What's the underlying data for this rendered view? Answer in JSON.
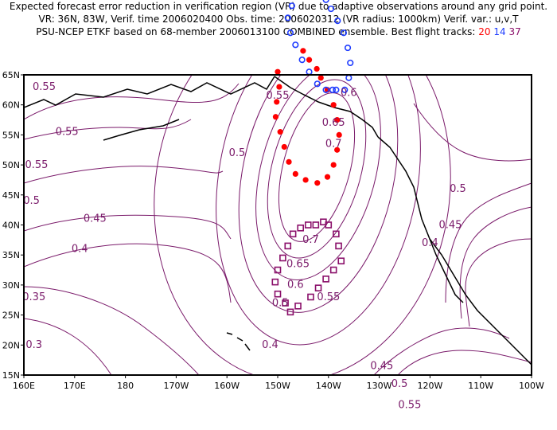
{
  "header": {
    "line1": "Expected forecast error reduction in verification region (VR) due to adaptive observations around any grid point.",
    "line2": "VR: 36N, 83W, Verif. time 2006020400  Obs. time: 2006020312 (VR radius: 1000km)  Verif. var.: u,v,T",
    "line3_prefix": "PSU-NCEP ETKF based on 68-member 2006013100 COMBINED ensemble.  Best flight tracks:",
    "track_20": "20",
    "track_14": "14",
    "track_37": "37"
  },
  "map": {
    "lon_range": [
      160,
      260
    ],
    "lat_range": [
      15,
      65
    ],
    "x_ticks": [
      {
        "lon": 160,
        "label": "160E"
      },
      {
        "lon": 170,
        "label": "170E"
      },
      {
        "lon": 180,
        "label": "180"
      },
      {
        "lon": 190,
        "label": "170W"
      },
      {
        "lon": 200,
        "label": "160W"
      },
      {
        "lon": 210,
        "label": "150W"
      },
      {
        "lon": 220,
        "label": "140W"
      },
      {
        "lon": 230,
        "label": "130W"
      },
      {
        "lon": 240,
        "label": "120W"
      },
      {
        "lon": 250,
        "label": "110W"
      },
      {
        "lon": 260,
        "label": "100W"
      }
    ],
    "y_ticks": [
      {
        "lat": 15,
        "label": "15N"
      },
      {
        "lat": 20,
        "label": "20N"
      },
      {
        "lat": 25,
        "label": "25N"
      },
      {
        "lat": 30,
        "label": "30N"
      },
      {
        "lat": 35,
        "label": "35N"
      },
      {
        "lat": 40,
        "label": "40N"
      },
      {
        "lat": 45,
        "label": "45N"
      },
      {
        "lat": 50,
        "label": "50N"
      },
      {
        "lat": 55,
        "label": "55N"
      },
      {
        "lat": 60,
        "label": "60N"
      },
      {
        "lat": 65,
        "label": "65N"
      }
    ],
    "colors": {
      "contour": "#7a1a6a",
      "coast": "#000000",
      "track_20": "#ff0000",
      "track_14": "#1e3cff",
      "track_37": "#8a0f6a"
    },
    "contour_labels": [
      {
        "lon": 164.0,
        "lat": 62.5,
        "text": "0.55"
      },
      {
        "lon": 168.5,
        "lat": 55.0,
        "text": "0.55"
      },
      {
        "lon": 162.5,
        "lat": 49.5,
        "text": "0.55"
      },
      {
        "lon": 161.5,
        "lat": 43.5,
        "text": "0.5"
      },
      {
        "lon": 174.0,
        "lat": 40.5,
        "text": "0.45"
      },
      {
        "lon": 171.0,
        "lat": 35.5,
        "text": "0.4"
      },
      {
        "lon": 162.0,
        "lat": 27.5,
        "text": "0.35"
      },
      {
        "lon": 162.0,
        "lat": 19.5,
        "text": "0.3"
      },
      {
        "lon": 202.0,
        "lat": 51.5,
        "text": "0.5"
      },
      {
        "lon": 210.0,
        "lat": 61.0,
        "text": "0.55"
      },
      {
        "lon": 224.0,
        "lat": 61.5,
        "text": "0.6"
      },
      {
        "lon": 221.0,
        "lat": 56.5,
        "text": "0.65"
      },
      {
        "lon": 221.0,
        "lat": 53.0,
        "text": "0.7"
      },
      {
        "lon": 216.5,
        "lat": 37.0,
        "text": "0.7"
      },
      {
        "lon": 214.0,
        "lat": 33.0,
        "text": "0.65"
      },
      {
        "lon": 213.5,
        "lat": 29.5,
        "text": "0.6"
      },
      {
        "lon": 210.5,
        "lat": 26.5,
        "text": "0.5"
      },
      {
        "lon": 220.0,
        "lat": 27.5,
        "text": "0.55"
      },
      {
        "lon": 208.5,
        "lat": 19.5,
        "text": "0.4"
      },
      {
        "lon": 245.5,
        "lat": 45.5,
        "text": "0.5"
      },
      {
        "lon": 244.0,
        "lat": 39.5,
        "text": "0.45"
      },
      {
        "lon": 240.0,
        "lat": 36.5,
        "text": "0.4"
      },
      {
        "lon": 230.5,
        "lat": 16.0,
        "text": "0.45"
      },
      {
        "lon": 234.0,
        "lat": 13.0,
        "text": "0.5"
      },
      {
        "lon": 236.0,
        "lat": 9.5,
        "text": "0.55"
      }
    ],
    "track_20_points": [
      {
        "lon": 210.0,
        "lat": 65.5
      },
      {
        "lon": 210.3,
        "lat": 63.0
      },
      {
        "lon": 209.8,
        "lat": 60.5
      },
      {
        "lon": 209.6,
        "lat": 58.0
      },
      {
        "lon": 210.5,
        "lat": 55.5
      },
      {
        "lon": 211.3,
        "lat": 53.0
      },
      {
        "lon": 212.2,
        "lat": 50.5
      },
      {
        "lon": 213.5,
        "lat": 48.5
      },
      {
        "lon": 215.5,
        "lat": 47.5
      },
      {
        "lon": 217.8,
        "lat": 47.0
      },
      {
        "lon": 219.8,
        "lat": 48.0
      },
      {
        "lon": 221.0,
        "lat": 50.0
      },
      {
        "lon": 221.7,
        "lat": 52.5
      },
      {
        "lon": 222.1,
        "lat": 55.0
      },
      {
        "lon": 221.7,
        "lat": 57.5
      },
      {
        "lon": 221.0,
        "lat": 60.0
      },
      {
        "lon": 219.8,
        "lat": 62.5
      },
      {
        "lon": 218.5,
        "lat": 64.5
      },
      {
        "lon": 217.7,
        "lat": 66.0
      },
      {
        "lon": 216.2,
        "lat": 67.5
      },
      {
        "lon": 215.0,
        "lat": 69.0
      }
    ],
    "track_14_points": [
      {
        "lon": 218.0,
        "lat": 79.0
      },
      {
        "lon": 216.0,
        "lat": 79.5
      },
      {
        "lon": 214.5,
        "lat": 78.5
      },
      {
        "lon": 212.8,
        "lat": 76.5
      },
      {
        "lon": 212.0,
        "lat": 74.5
      },
      {
        "lon": 212.5,
        "lat": 72.0
      },
      {
        "lon": 213.5,
        "lat": 70.0
      },
      {
        "lon": 214.8,
        "lat": 67.5
      },
      {
        "lon": 216.2,
        "lat": 65.5
      },
      {
        "lon": 217.8,
        "lat": 63.5
      },
      {
        "lon": 219.5,
        "lat": 62.5
      },
      {
        "lon": 220.8,
        "lat": 62.5
      },
      {
        "lon": 221.5,
        "lat": 62.5
      },
      {
        "lon": 223.2,
        "lat": 62.5
      },
      {
        "lon": 224.0,
        "lat": 64.5
      },
      {
        "lon": 224.3,
        "lat": 67.0
      },
      {
        "lon": 223.8,
        "lat": 69.5
      },
      {
        "lon": 223.0,
        "lat": 72.0
      },
      {
        "lon": 221.8,
        "lat": 74.0
      },
      {
        "lon": 220.5,
        "lat": 76.0
      },
      {
        "lon": 219.5,
        "lat": 77.5
      }
    ],
    "track_37_points": [
      {
        "lon": 220.0,
        "lat": 40.0
      },
      {
        "lon": 221.5,
        "lat": 38.5
      },
      {
        "lon": 222.0,
        "lat": 36.5
      },
      {
        "lon": 222.5,
        "lat": 34.0
      },
      {
        "lon": 221.0,
        "lat": 32.5
      },
      {
        "lon": 219.5,
        "lat": 31.0
      },
      {
        "lon": 218.0,
        "lat": 29.5
      },
      {
        "lon": 216.5,
        "lat": 28.0
      },
      {
        "lon": 214.0,
        "lat": 26.5
      },
      {
        "lon": 212.5,
        "lat": 25.5
      },
      {
        "lon": 211.5,
        "lat": 27.0
      },
      {
        "lon": 210.0,
        "lat": 28.5
      },
      {
        "lon": 209.5,
        "lat": 30.5
      },
      {
        "lon": 210.0,
        "lat": 32.5
      },
      {
        "lon": 211.0,
        "lat": 34.5
      },
      {
        "lon": 212.0,
        "lat": 36.5
      },
      {
        "lon": 213.0,
        "lat": 38.5
      },
      {
        "lon": 214.5,
        "lat": 39.5
      },
      {
        "lon": 216.0,
        "lat": 40.0
      },
      {
        "lon": 217.5,
        "lat": 40.0
      },
      {
        "lon": 219.0,
        "lat": 40.5
      }
    ]
  }
}
